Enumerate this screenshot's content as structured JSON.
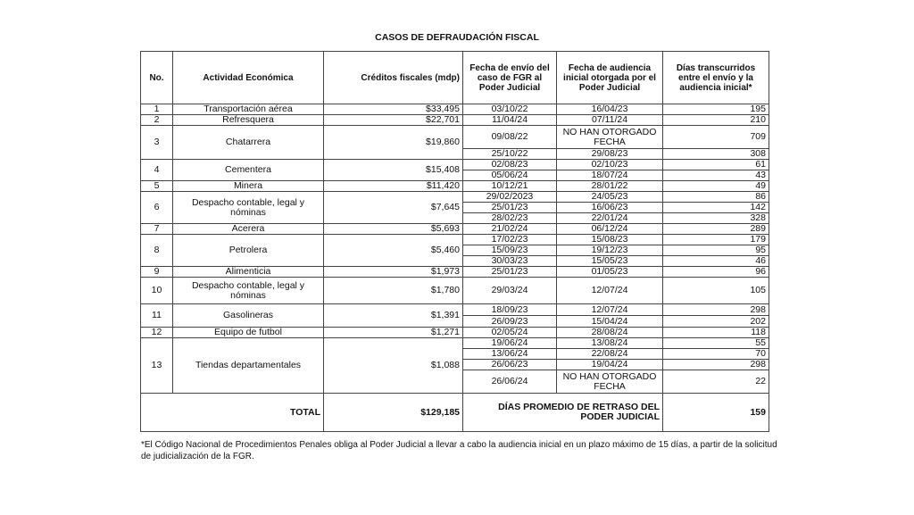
{
  "title": "CASOS DE DEFRAUDACIÓN FISCAL",
  "headers": [
    "No.",
    "Actividad Económica",
    "Créditos fiscales (mdp)",
    "Fecha de envío del caso de FGR al Poder Judicial",
    "Fecha de audiencia inicial otorgada por el Poder Judicial",
    "Días transcurridos entre el envío y la audiencia inicial*"
  ],
  "cases": [
    {
      "no": "1",
      "actividad": "Transportación aérea",
      "credito": "$33,495",
      "sub": [
        [
          "03/10/22",
          "16/04/23",
          "195"
        ]
      ]
    },
    {
      "no": "2",
      "actividad": "Refresquera",
      "credito": "$22,701",
      "sub": [
        [
          "11/04/24",
          "07/11/24",
          "210"
        ]
      ]
    },
    {
      "no": "3",
      "actividad": "Chatarrera",
      "credito": "$19,860",
      "sub": [
        [
          "09/08/22",
          "NO HAN OTORGADO FECHA",
          "709"
        ],
        [
          "25/10/22",
          "29/08/23",
          "308"
        ]
      ]
    },
    {
      "no": "4",
      "actividad": "Cementera",
      "credito": "$15,408",
      "sub": [
        [
          "02/08/23",
          "02/10/23",
          "61"
        ],
        [
          "05/06/24",
          "18/07/24",
          "43"
        ]
      ]
    },
    {
      "no": "5",
      "actividad": "Minera",
      "credito": "$11,420",
      "sub": [
        [
          "10/12/21",
          "28/01/22",
          "49"
        ]
      ]
    },
    {
      "no": "6",
      "actividad": "Despacho contable, legal y nóminas",
      "credito": "$7,645",
      "sub": [
        [
          "29/02/2023",
          "24/05/23",
          "86"
        ],
        [
          "25/01/23",
          "16/06/23",
          "142"
        ],
        [
          "28/02/23",
          "22/01/24",
          "328"
        ]
      ]
    },
    {
      "no": "7",
      "actividad": "Acerera",
      "credito": "$5,693",
      "sub": [
        [
          "21/02/24",
          "06/12/24",
          "289"
        ]
      ]
    },
    {
      "no": "8",
      "actividad": "Petrolera",
      "credito": "$5,460",
      "sub": [
        [
          "17/02/23",
          "15/08/23",
          "179"
        ],
        [
          "15/09/23",
          "19/12/23",
          "95"
        ],
        [
          "30/03/23",
          "15/05/23",
          "46"
        ]
      ]
    },
    {
      "no": "9",
      "actividad": "Alimenticia",
      "credito": "$1,973",
      "sub": [
        [
          "25/01/23",
          "01/05/23",
          "96"
        ]
      ]
    },
    {
      "no": "10",
      "actividad": "Despacho contable, legal y nóminas",
      "credito": "$1,780",
      "sub": [
        [
          "29/03/24",
          "12/07/24",
          "105"
        ]
      ]
    },
    {
      "no": "11",
      "actividad": "Gasolineras",
      "credito": "$1,391",
      "sub": [
        [
          "18/09/23",
          "12/07/24",
          "298"
        ],
        [
          "26/09/23",
          "15/04/24",
          "202"
        ]
      ]
    },
    {
      "no": "12",
      "actividad": "Equipo de futbol",
      "credito": "$1,271",
      "sub": [
        [
          "02/05/24",
          "28/08/24",
          "118"
        ]
      ]
    },
    {
      "no": "13",
      "actividad": "Tiendas departamentales",
      "credito": "$1,088",
      "sub": [
        [
          "19/06/24",
          "13/08/24",
          "55"
        ],
        [
          "13/06/24",
          "22/08/24",
          "70"
        ],
        [
          "26/06/23",
          "19/04/24",
          "298"
        ],
        [
          "26/06/24",
          "NO HAN OTORGADO FECHA",
          "22"
        ]
      ]
    }
  ],
  "total": {
    "label": "TOTAL",
    "value": "$129,185",
    "avg_label": "DÍAS PROMEDIO DE RETRASO DEL PODER JUDICIAL",
    "avg_value": "159"
  },
  "footnote": "*El Código Nacional de Procedimientos Penales obliga al Poder Judicial a llevar a cabo la audiencia inicial en un plazo máximo de 15 días, a partir de la solicitud de judicialización de la FGR."
}
